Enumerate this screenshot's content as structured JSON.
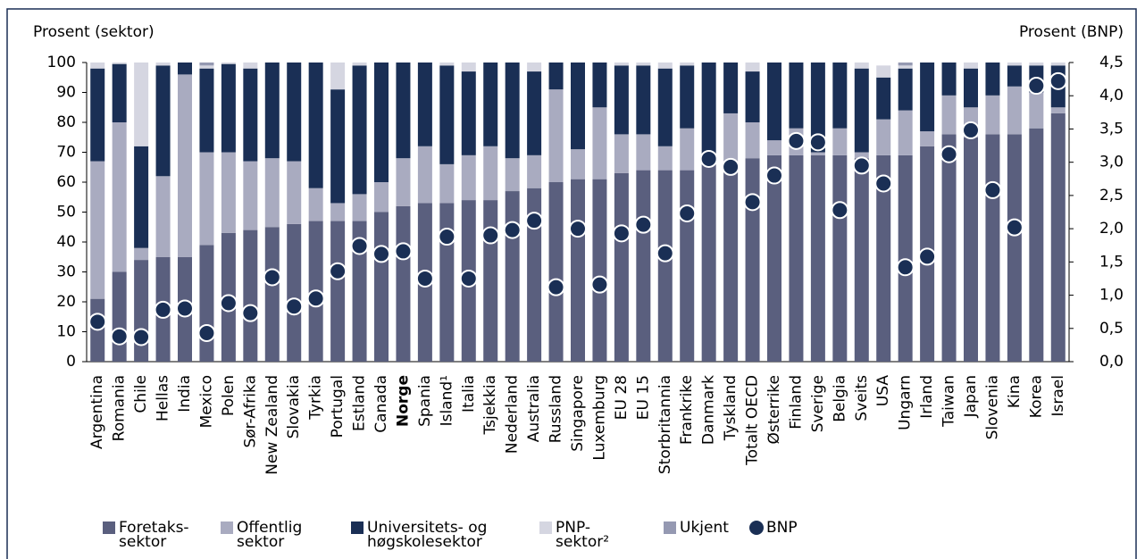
{
  "chart_data": {
    "type": "stacked_bar_dot",
    "y_label": "Prosent (sektor)",
    "y2_label": "Prosent (BNP)",
    "categories": [
      "Argentina",
      "Romania",
      "Chile",
      "Hellas",
      "India",
      "Mexico",
      "Polen",
      "Sør-Afrika",
      "New Zealand",
      "Slovakia",
      "Tyrkia",
      "Portugal",
      "Estland",
      "Canada",
      "Norge",
      "Spania",
      "Island¹",
      "Italia",
      "Tsjekkia",
      "Nederland",
      "Australia",
      "Russland",
      "Singapore",
      "Luxemburg",
      "EU 28",
      "EU 15",
      "Storbritannia",
      "Frankrike",
      "Danmark",
      "Tyskland",
      "Totalt OECD",
      "Østerrike",
      "Finland",
      "Sverige",
      "Belgia",
      "Sveits",
      "USA",
      "Ungarn",
      "Irland",
      "Taiwan",
      "Japan",
      "Slovenia",
      "Kina",
      "Korea",
      "Israel"
    ],
    "highlight_index": 14,
    "series": [
      {
        "name": "Foretaks-\nsektor",
        "color": "#5a5f7e",
        "values": [
          21,
          30,
          34,
          35,
          35,
          39,
          43,
          44,
          45,
          46,
          47,
          47,
          47,
          50,
          52,
          53,
          53,
          54,
          54,
          57,
          58,
          60,
          61,
          61,
          63,
          64,
          64,
          64,
          66,
          66,
          68,
          69,
          69,
          69,
          69,
          68,
          69,
          69,
          72,
          76,
          75,
          76,
          76,
          78,
          83
        ]
      },
      {
        "name": "Offentlig\nsektor",
        "color": "#a9abc0",
        "values": [
          46,
          50,
          4,
          27,
          61,
          31,
          27,
          23,
          23,
          21,
          11,
          6,
          9,
          10,
          16,
          19,
          13,
          15,
          18,
          11,
          11,
          31,
          10,
          24,
          13,
          12,
          8,
          14,
          2,
          17,
          12,
          5,
          9,
          1,
          9,
          2,
          12,
          15,
          5,
          13,
          10,
          13,
          16,
          12,
          2
        ]
      },
      {
        "name": "Universitets- og\nhøgskolesektor",
        "color": "#1a2f55",
        "values": [
          31,
          19.5,
          34,
          37,
          4,
          28,
          29.5,
          31,
          32,
          33,
          42,
          38,
          43,
          40,
          32,
          28,
          33,
          28,
          28,
          32,
          28,
          9,
          29,
          15,
          23,
          23,
          26,
          21,
          32,
          17,
          17,
          26,
          22,
          30,
          22,
          28,
          14,
          14,
          23,
          11,
          13,
          11,
          7,
          9,
          14
        ]
      },
      {
        "name": "PNP-\nsektor²",
        "color": "#d5d6e1",
        "values": [
          2,
          0.5,
          28,
          1,
          0,
          1,
          0.5,
          2,
          0,
          0,
          0,
          9,
          1,
          0,
          0,
          0,
          1,
          3,
          0,
          0,
          3,
          0,
          0,
          0,
          1,
          1,
          2,
          1,
          0,
          0,
          3,
          0,
          0,
          0,
          0,
          2,
          4,
          1,
          0,
          0,
          2,
          0,
          1,
          1,
          1
        ]
      },
      {
        "name": "Ukjent",
        "color": "#9599b2",
        "values": [
          0,
          0,
          0,
          0,
          0,
          1,
          0,
          0,
          0,
          0,
          0,
          0,
          0,
          0,
          0,
          0,
          0,
          0,
          0,
          0,
          0,
          0,
          0,
          0,
          0,
          0,
          0,
          0,
          0,
          0,
          0,
          0,
          0,
          0,
          0,
          0,
          0,
          1,
          0,
          0,
          0,
          0,
          0,
          0,
          0
        ]
      },
      {
        "name": "BNP",
        "color": "#1a2f55",
        "axis": "y2",
        "values": [
          0.6,
          0.38,
          0.37,
          0.78,
          0.8,
          0.43,
          0.88,
          0.73,
          1.27,
          0.83,
          0.95,
          1.36,
          1.74,
          1.62,
          1.66,
          1.25,
          1.88,
          1.25,
          1.9,
          1.98,
          2.12,
          1.12,
          2.0,
          1.16,
          1.93,
          2.06,
          1.63,
          2.23,
          3.05,
          2.93,
          2.4,
          2.8,
          3.32,
          3.3,
          2.28,
          2.95,
          2.68,
          1.42,
          1.58,
          3.12,
          3.48,
          2.58,
          2.02,
          4.15,
          4.22
        ]
      }
    ],
    "ylim": [
      0,
      100
    ],
    "yticks": [
      0,
      10,
      20,
      30,
      40,
      50,
      60,
      70,
      80,
      90,
      100
    ],
    "y2lim": [
      0,
      4.5
    ],
    "y2ticks": [
      {
        "value": 0,
        "label": "0,0"
      },
      {
        "value": 0.5,
        "label": "0,5"
      },
      {
        "value": 1,
        "label": "1,0"
      },
      {
        "value": 1.5,
        "label": "1,5"
      },
      {
        "value": 2,
        "label": "2,0"
      },
      {
        "value": 2.5,
        "label": "2,5"
      },
      {
        "value": 3,
        "label": "3,0"
      },
      {
        "value": 3.5,
        "label": "3,5"
      },
      {
        "value": 4,
        "label": "4,0"
      },
      {
        "value": 4.5,
        "label": "4,5"
      }
    ]
  }
}
